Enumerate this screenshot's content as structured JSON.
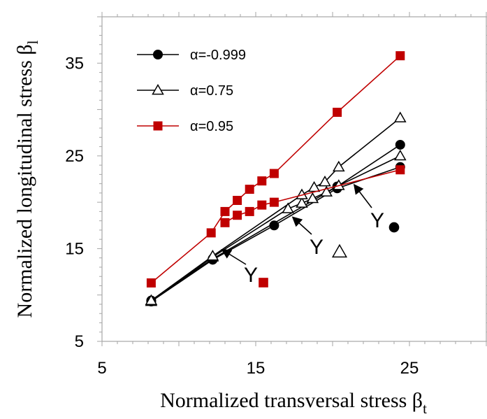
{
  "chart_data": {
    "type": "line",
    "xlabel": "Normalized transversal stress β",
    "xlabel_sub": "t",
    "ylabel": "Normalized longitudinal stress β",
    "ylabel_sub": "l",
    "xlim": [
      5,
      30
    ],
    "ylim": [
      5,
      40
    ],
    "xticks": [
      5,
      15,
      25
    ],
    "yticks": [
      5,
      15,
      25,
      35
    ],
    "grid": false,
    "legend_position": "top-left",
    "series": [
      {
        "name": "α=-0.999",
        "marker": "circle",
        "color": "#000000",
        "segments": [
          [
            [
              8.2,
              9.3
            ],
            [
              12.2,
              13.8
            ],
            [
              16.2,
              17.5
            ],
            [
              20.3,
              21.5
            ],
            [
              24.4,
              23.8
            ]
          ],
          [
            [
              8.2,
              9.4
            ],
            [
              12.2,
              13.9
            ],
            [
              20.3,
              21.7
            ],
            [
              24.4,
              26.2
            ]
          ]
        ]
      },
      {
        "name": "α=0.75",
        "marker": "triangle-open",
        "color": "#000000",
        "segments": [
          [
            [
              8.2,
              9.3
            ],
            [
              12.2,
              14.1
            ],
            [
              17.1,
              19.3
            ],
            [
              18.0,
              19.9
            ],
            [
              18.7,
              20.4
            ],
            [
              19.6,
              21.1
            ],
            [
              20.4,
              21.8
            ],
            [
              24.4,
              25.0
            ]
          ],
          [
            [
              8.2,
              9.4
            ],
            [
              12.2,
              14.2
            ],
            [
              18.0,
              20.8
            ],
            [
              18.8,
              21.6
            ],
            [
              19.5,
              22.2
            ],
            [
              20.4,
              23.8
            ],
            [
              24.4,
              29.1
            ]
          ]
        ]
      },
      {
        "name": "α=0.95",
        "marker": "square",
        "color": "#c00000",
        "segments": [
          [
            [
              8.2,
              11.3
            ],
            [
              12.1,
              16.7
            ],
            [
              13.0,
              19.0
            ],
            [
              13.8,
              20.2
            ],
            [
              14.6,
              21.4
            ],
            [
              15.4,
              22.3
            ],
            [
              16.2,
              23.1
            ],
            [
              20.3,
              29.7
            ],
            [
              24.4,
              35.8
            ]
          ],
          [
            [
              13.0,
              17.8
            ],
            [
              13.8,
              18.6
            ],
            [
              14.6,
              19.0
            ],
            [
              15.4,
              19.7
            ],
            [
              16.2,
              20.0
            ],
            [
              24.4,
              23.5
            ]
          ]
        ]
      }
    ],
    "annotations": [
      {
        "text": "Y",
        "marker": "square",
        "color": "#c00000",
        "arrow_to": [
          12.8,
          14.9
        ]
      },
      {
        "text": "Y",
        "marker": "triangle-open",
        "color": "#000000",
        "arrow_to": [
          17.4,
          18.4
        ]
      },
      {
        "text": "Y",
        "marker": "circle",
        "color": "#000000",
        "arrow_to": [
          21.4,
          21.9
        ]
      }
    ]
  }
}
